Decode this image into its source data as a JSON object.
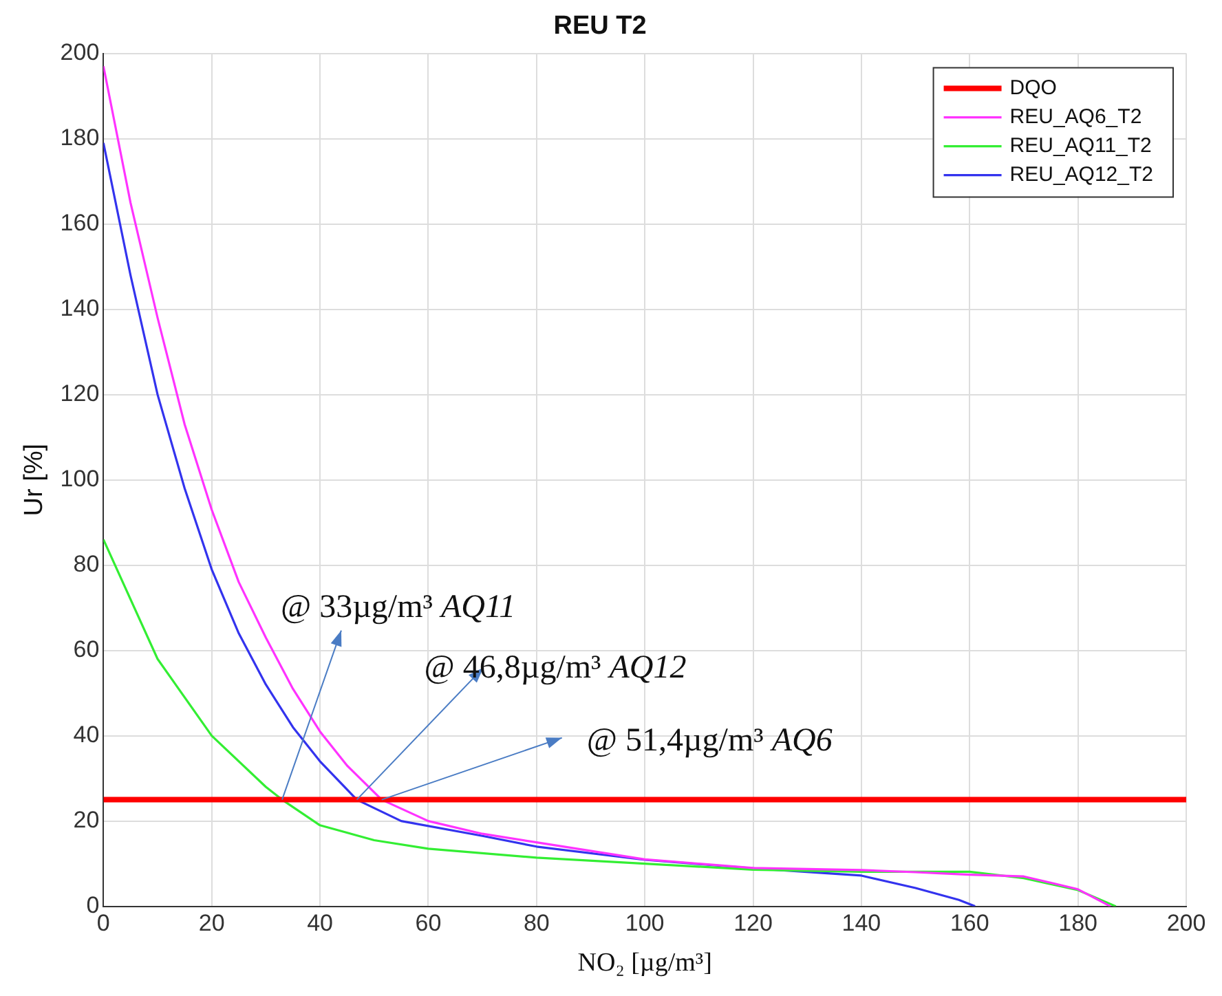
{
  "chart_data": {
    "type": "line",
    "title": "REU T2",
    "xlabel": "NO₂ [µg/m³]",
    "ylabel": "Ur [%]",
    "xlim": [
      0,
      200
    ],
    "xticks": [
      0,
      20,
      40,
      60,
      80,
      100,
      120,
      140,
      160,
      180,
      200
    ],
    "ylim": [
      0,
      200
    ],
    "yticks": [
      0,
      20,
      40,
      60,
      80,
      100,
      120,
      140,
      160,
      180,
      200
    ],
    "grid": true,
    "legend": "top right",
    "marker": "none",
    "line_style": "solid",
    "series": [
      {
        "name": "DQO",
        "color": "#ff0000",
        "x": [
          0,
          200
        ],
        "values": [
          25,
          25
        ]
      },
      {
        "name": "REU_AQ6_T2",
        "color": "#ff33ff",
        "x": [
          0,
          5,
          10,
          15,
          20,
          25,
          30,
          35,
          40,
          45,
          51.4,
          60,
          70,
          80,
          100,
          120,
          140,
          150,
          160,
          170,
          180,
          186
        ],
        "values": [
          197,
          165,
          138,
          113,
          93,
          76,
          63,
          51,
          41,
          33,
          25,
          20,
          17,
          15,
          11,
          9,
          8.5,
          8,
          7.4,
          7,
          4,
          0
        ]
      },
      {
        "name": "REU_AQ11_T2",
        "color": "#33ee33",
        "x": [
          0,
          10,
          20,
          30,
          33,
          40,
          50,
          60,
          80,
          100,
          120,
          140,
          160,
          170,
          180,
          187
        ],
        "values": [
          86,
          58,
          40,
          28,
          25,
          19,
          15.5,
          13.5,
          11.4,
          10,
          8.6,
          8.1,
          8.1,
          6.6,
          3.8,
          0
        ]
      },
      {
        "name": "REU_AQ12_T2",
        "color": "#3333ee",
        "x": [
          0,
          5,
          10,
          15,
          20,
          25,
          30,
          35,
          40,
          46.8,
          55,
          70,
          80,
          100,
          120,
          140,
          150,
          158,
          161
        ],
        "values": [
          179,
          148,
          120,
          98,
          79,
          64,
          52,
          42,
          34,
          25,
          20,
          16.5,
          14,
          10.9,
          8.9,
          7.2,
          4.3,
          1.5,
          0
        ]
      }
    ],
    "annotations": [
      {
        "text": "@ 33µg/m³ AQ11",
        "x": 33,
        "y": 25
      },
      {
        "text": "@ 46,8µg/m³ AQ12",
        "x": 46.8,
        "y": 25
      },
      {
        "text": "@ 51,4µg/m³ AQ6",
        "x": 51.4,
        "y": 25
      }
    ]
  }
}
